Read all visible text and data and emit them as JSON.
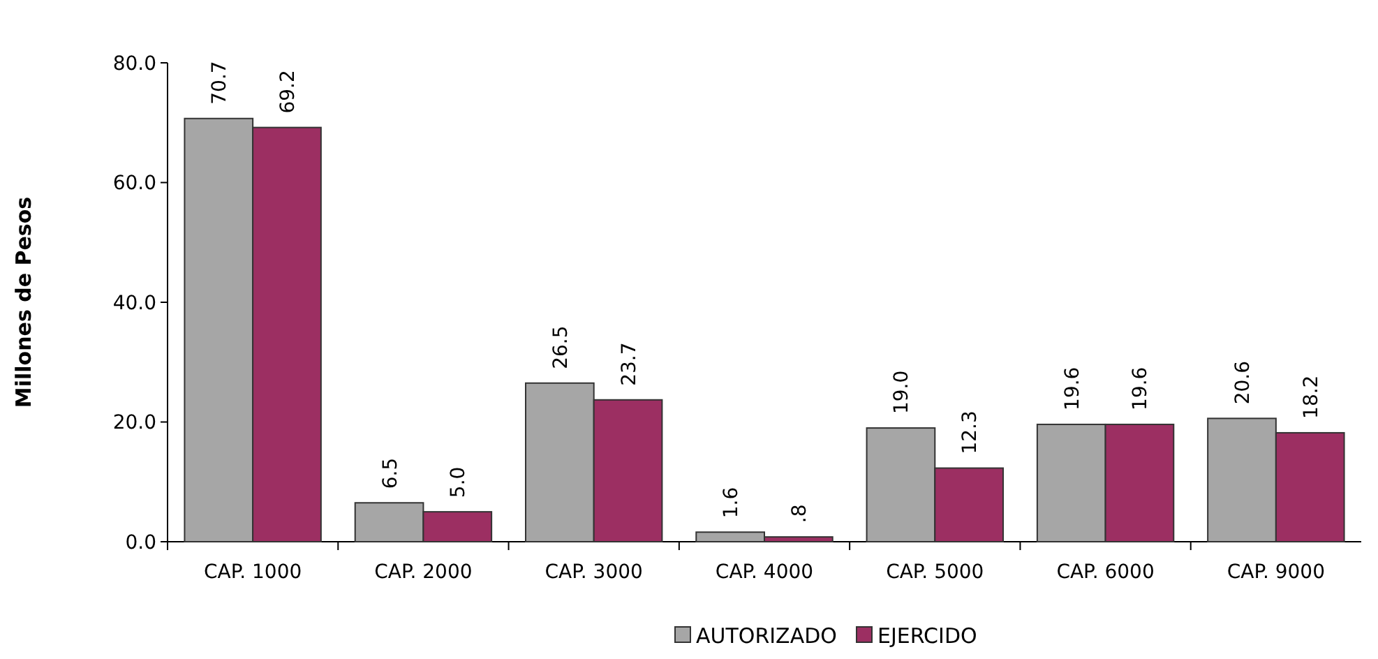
{
  "chart_data": {
    "type": "bar",
    "ylabel": "Millones de Pesos",
    "categories": [
      "CAP. 1000",
      "CAP. 2000",
      "CAP. 3000",
      "CAP. 4000",
      "CAP. 5000",
      "CAP. 6000",
      "CAP. 9000"
    ],
    "series": [
      {
        "name": "AUTORIZADO",
        "color": "#a6a6a6",
        "values": [
          70.7,
          6.5,
          26.5,
          1.6,
          19.0,
          19.6,
          20.6
        ],
        "value_labels": [
          "70.7",
          "6.5",
          "26.5",
          "1.6",
          "19.0",
          "19.6",
          "20.6"
        ]
      },
      {
        "name": "EJERCIDO",
        "color": "#9c2f62",
        "values": [
          69.2,
          5.0,
          23.7,
          0.8,
          12.3,
          19.6,
          18.2
        ],
        "value_labels": [
          "69.2",
          "5.0",
          "23.7",
          ".8",
          "12.3",
          "19.6",
          "18.2"
        ]
      }
    ],
    "ylim": [
      0,
      80
    ],
    "yticks": [
      {
        "value": 0,
        "label": "0.0"
      },
      {
        "value": 20,
        "label": "20.0"
      },
      {
        "value": 40,
        "label": "40.0"
      },
      {
        "value": 60,
        "label": "60.0"
      },
      {
        "value": 80,
        "label": "80.0"
      }
    ],
    "legend": "bottom"
  }
}
